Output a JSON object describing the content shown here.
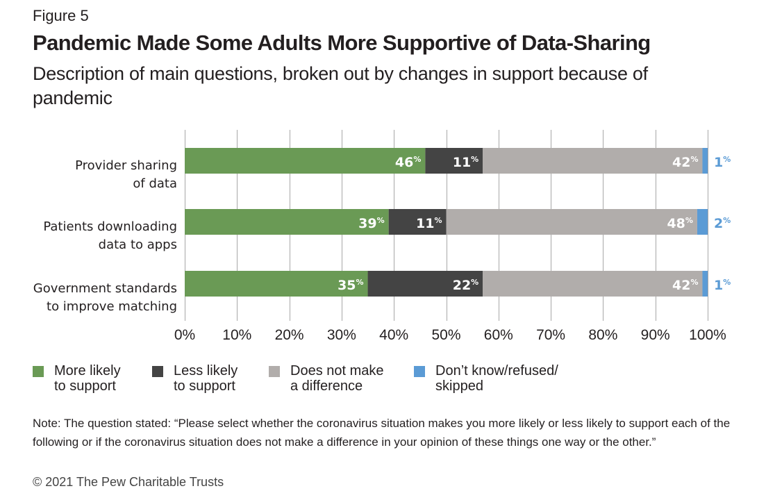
{
  "figure_label": "Figure 5",
  "chart_data": {
    "type": "bar",
    "orientation": "horizontal",
    "stacked": true,
    "title": "Pandemic Made Some Adults More Supportive of Data-Sharing",
    "subtitle": "Description of main questions, broken out by changes in support because of pandemic",
    "categories": [
      [
        "Provider sharing",
        "of data"
      ],
      [
        "Patients downloading",
        "data to apps"
      ],
      [
        "Government standards",
        "to improve matching"
      ]
    ],
    "series": [
      {
        "name": "More likely to support",
        "legend_lines": [
          "More likely",
          "to support"
        ],
        "color": "#6a9a55",
        "label_color": "#ffffff",
        "values": [
          46,
          39,
          35
        ]
      },
      {
        "name": "Less likely to support",
        "legend_lines": [
          "Less likely",
          "to support"
        ],
        "color": "#444444",
        "label_color": "#ffffff",
        "values": [
          11,
          11,
          22
        ]
      },
      {
        "name": "Does not make a difference",
        "legend_lines": [
          "Does not make",
          "a difference"
        ],
        "color": "#b1adab",
        "label_color": "#ffffff",
        "values": [
          42,
          48,
          42
        ]
      },
      {
        "name": "Don't know/refused/skipped",
        "legend_lines": [
          "Don’t know/refused/",
          "skipped"
        ],
        "color": "#5b9bd5",
        "label_color": "#5b9bd5",
        "label_outside": true,
        "values": [
          1,
          2,
          1
        ]
      }
    ],
    "value_suffix": "%",
    "xlim": [
      0,
      100
    ],
    "xticks": [
      0,
      10,
      20,
      30,
      40,
      50,
      60,
      70,
      80,
      90,
      100
    ],
    "xtick_labels": [
      "0%",
      "10%",
      "20%",
      "30%",
      "40%",
      "50%",
      "60%",
      "70%",
      "80%",
      "90%",
      "100%"
    ],
    "xlabel": "",
    "ylabel": "",
    "grid": "vertical",
    "legend_position": "bottom-left"
  },
  "note": "Note: The question stated: “Please select whether the coronavirus situation makes you more likely or less likely to support each of the following or if the coronavirus situation does not make a difference in your opinion of these things one way or the other.”",
  "copyright": "© 2021 The Pew Charitable Trusts"
}
